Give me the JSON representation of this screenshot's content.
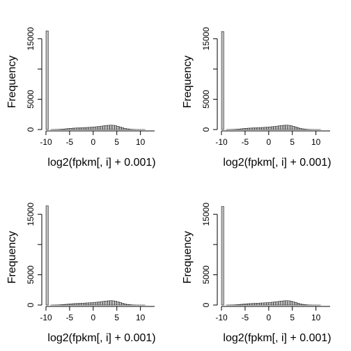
{
  "chart_data": [
    {
      "type": "bar",
      "title": "",
      "xlabel": "log2(fpkm[, i] + 0.001)",
      "ylabel": "Frequency",
      "xlim": [
        -10,
        13
      ],
      "ylim": [
        0,
        16000
      ],
      "xticks": [
        -10,
        -5,
        0,
        5,
        10
      ],
      "xtick_labels": [
        "-10",
        "-5",
        "0",
        "5",
        "10"
      ],
      "yticks": [
        0,
        5000,
        15000
      ],
      "ytick_labels": [
        "0",
        "5000",
        "15000"
      ],
      "bin_width": 0.5,
      "bins_start": [
        -10,
        -9.5,
        -9,
        -8.5,
        -8,
        -7.5,
        -7,
        -6.5,
        -6,
        -5.5,
        -5,
        -4.5,
        -4,
        -3.5,
        -3,
        -2.5,
        -2,
        -1.5,
        -1,
        -0.5,
        0,
        0.5,
        1,
        1.5,
        2,
        2.5,
        3,
        3.5,
        4,
        4.5,
        5,
        5.5,
        6,
        6.5,
        7,
        7.5,
        8,
        8.5,
        9,
        9.5,
        10,
        10.5,
        11,
        11.5,
        12
      ],
      "counts": [
        16300,
        0,
        5,
        10,
        20,
        30,
        50,
        80,
        120,
        160,
        200,
        230,
        250,
        270,
        290,
        310,
        330,
        350,
        370,
        400,
        430,
        470,
        510,
        560,
        610,
        660,
        700,
        720,
        700,
        640,
        540,
        420,
        300,
        190,
        110,
        60,
        30,
        15,
        8,
        4,
        2,
        1,
        0,
        0,
        0
      ]
    },
    {
      "type": "bar",
      "title": "",
      "xlabel": "log2(fpkm[, i] + 0.001)",
      "ylabel": "Frequency",
      "xlim": [
        -10,
        13
      ],
      "ylim": [
        0,
        16000
      ],
      "xticks": [
        -10,
        -5,
        0,
        5,
        10
      ],
      "xtick_labels": [
        "-10",
        "-5",
        "0",
        "5",
        "10"
      ],
      "yticks": [
        0,
        5000,
        15000
      ],
      "ytick_labels": [
        "0",
        "5000",
        "15000"
      ],
      "bin_width": 0.5,
      "bins_start": [
        -10,
        -9.5,
        -9,
        -8.5,
        -8,
        -7.5,
        -7,
        -6.5,
        -6,
        -5.5,
        -5,
        -4.5,
        -4,
        -3.5,
        -3,
        -2.5,
        -2,
        -1.5,
        -1,
        -0.5,
        0,
        0.5,
        1,
        1.5,
        2,
        2.5,
        3,
        3.5,
        4,
        4.5,
        5,
        5.5,
        6,
        6.5,
        7,
        7.5,
        8,
        8.5,
        9,
        9.5,
        10,
        10.5,
        11,
        11.5,
        12
      ],
      "counts": [
        16200,
        0,
        5,
        10,
        20,
        30,
        50,
        80,
        120,
        160,
        200,
        230,
        250,
        270,
        290,
        310,
        330,
        350,
        370,
        400,
        430,
        470,
        510,
        560,
        610,
        660,
        700,
        720,
        700,
        640,
        540,
        420,
        300,
        190,
        110,
        60,
        30,
        15,
        8,
        4,
        2,
        1,
        0,
        0,
        0
      ]
    },
    {
      "type": "bar",
      "title": "",
      "xlabel": "log2(fpkm[, i] + 0.001)",
      "ylabel": "Frequency",
      "xlim": [
        -10,
        13
      ],
      "ylim": [
        0,
        16000
      ],
      "xticks": [
        -10,
        -5,
        0,
        5,
        10
      ],
      "xtick_labels": [
        "-10",
        "-5",
        "0",
        "5",
        "10"
      ],
      "yticks": [
        0,
        5000,
        15000
      ],
      "ytick_labels": [
        "0",
        "5000",
        "15000"
      ],
      "bin_width": 0.5,
      "bins_start": [
        -10,
        -9.5,
        -9,
        -8.5,
        -8,
        -7.5,
        -7,
        -6.5,
        -6,
        -5.5,
        -5,
        -4.5,
        -4,
        -3.5,
        -3,
        -2.5,
        -2,
        -1.5,
        -1,
        -0.5,
        0,
        0.5,
        1,
        1.5,
        2,
        2.5,
        3,
        3.5,
        4,
        4.5,
        5,
        5.5,
        6,
        6.5,
        7,
        7.5,
        8,
        8.5,
        9,
        9.5,
        10,
        10.5,
        11,
        11.5,
        12
      ],
      "counts": [
        16400,
        0,
        5,
        10,
        20,
        30,
        50,
        80,
        120,
        160,
        200,
        230,
        250,
        270,
        290,
        310,
        330,
        350,
        370,
        400,
        430,
        470,
        510,
        560,
        610,
        660,
        700,
        720,
        700,
        640,
        540,
        420,
        300,
        190,
        110,
        60,
        30,
        15,
        8,
        4,
        2,
        1,
        0,
        0,
        0
      ]
    },
    {
      "type": "bar",
      "title": "",
      "xlabel": "log2(fpkm[, i] + 0.001)",
      "ylabel": "Frequency",
      "xlim": [
        -10,
        13
      ],
      "ylim": [
        0,
        16000
      ],
      "xticks": [
        -10,
        -5,
        0,
        5,
        10
      ],
      "xtick_labels": [
        "-10",
        "-5",
        "0",
        "5",
        "10"
      ],
      "yticks": [
        0,
        5000,
        15000
      ],
      "ytick_labels": [
        "0",
        "5000",
        "15000"
      ],
      "bin_width": 0.5,
      "bins_start": [
        -10,
        -9.5,
        -9,
        -8.5,
        -8,
        -7.5,
        -7,
        -6.5,
        -6,
        -5.5,
        -5,
        -4.5,
        -4,
        -3.5,
        -3,
        -2.5,
        -2,
        -1.5,
        -1,
        -0.5,
        0,
        0.5,
        1,
        1.5,
        2,
        2.5,
        3,
        3.5,
        4,
        4.5,
        5,
        5.5,
        6,
        6.5,
        7,
        7.5,
        8,
        8.5,
        9,
        9.5,
        10,
        10.5,
        11,
        11.5,
        12
      ],
      "counts": [
        16300,
        0,
        5,
        10,
        20,
        30,
        50,
        80,
        120,
        160,
        200,
        230,
        250,
        270,
        290,
        310,
        330,
        350,
        370,
        400,
        430,
        470,
        510,
        560,
        610,
        660,
        700,
        720,
        700,
        640,
        540,
        420,
        300,
        190,
        110,
        60,
        30,
        15,
        8,
        4,
        2,
        1,
        0,
        0,
        0
      ]
    }
  ]
}
